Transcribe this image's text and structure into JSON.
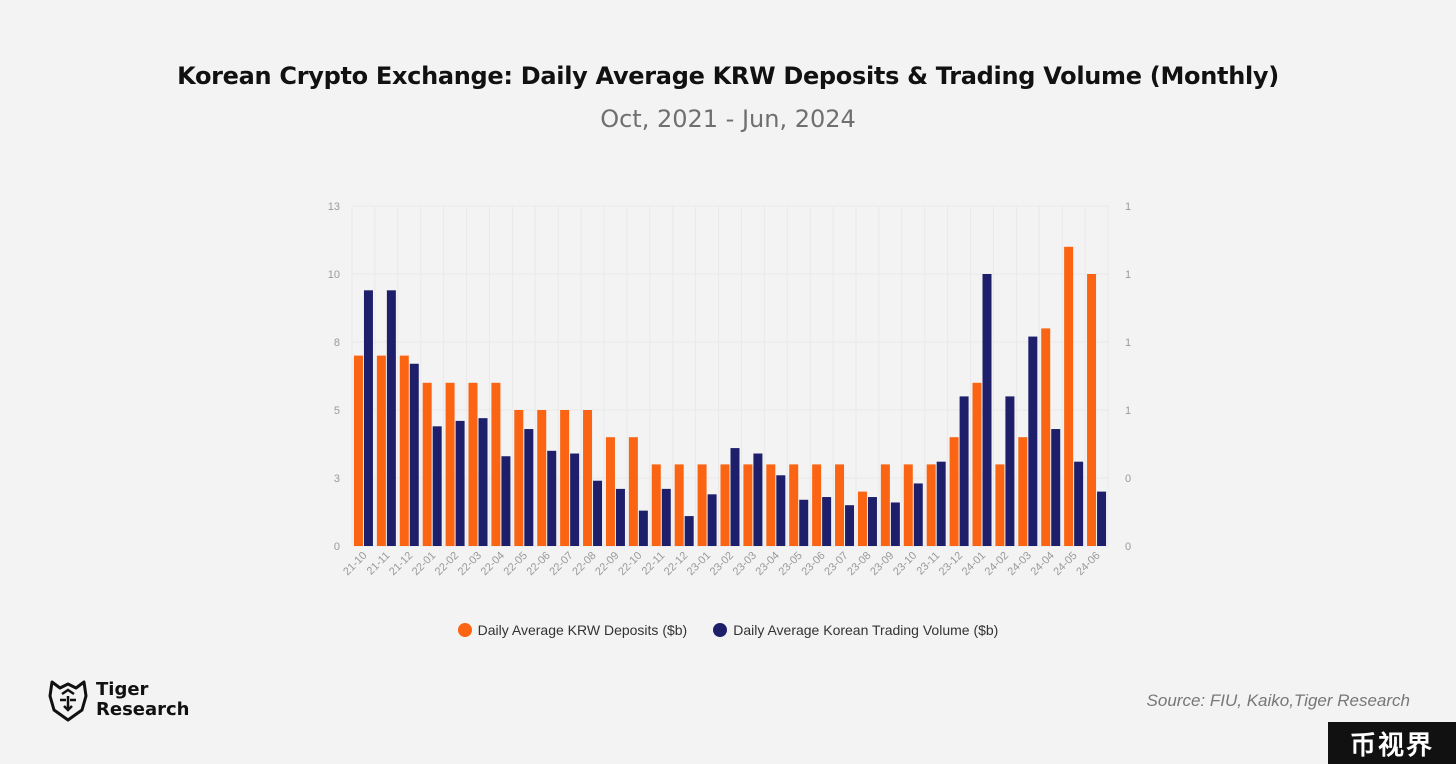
{
  "chart_data": {
    "type": "bar",
    "title": "Korean Crypto Exchange: Daily Average KRW Deposits & Trading Volume (Monthly)",
    "subtitle": "Oct, 2021 - Jun, 2024",
    "categories": [
      "21-10",
      "21-11",
      "21-12",
      "22-01",
      "22-02",
      "22-03",
      "22-04",
      "22-05",
      "22-06",
      "22-07",
      "22-08",
      "22-09",
      "22-10",
      "22-11",
      "22-12",
      "23-01",
      "23-02",
      "23-03",
      "23-04",
      "23-05",
      "23-06",
      "23-07",
      "23-08",
      "23-09",
      "23-10",
      "23-11",
      "23-12",
      "24-01",
      "24-02",
      "24-03",
      "24-04",
      "24-05",
      "24-06"
    ],
    "series": [
      {
        "name": "Daily Average KRW Deposits ($b)",
        "color": "#fa6412",
        "axis": "left",
        "values": [
          7.0,
          7.0,
          7.0,
          6.0,
          6.0,
          6.0,
          6.0,
          5.0,
          5.0,
          5.0,
          5.0,
          4.0,
          4.0,
          3.0,
          3.0,
          3.0,
          3.0,
          3.0,
          3.0,
          3.0,
          3.0,
          3.0,
          2.0,
          3.0,
          3.0,
          3.0,
          4.0,
          6.0,
          3.0,
          4.0,
          8.0,
          11.0,
          10.0
        ]
      },
      {
        "name": "Daily Average Korean Trading Volume ($b)",
        "color": "#1d1f6b",
        "axis": "right",
        "values": [
          9.4,
          9.4,
          6.7,
          4.4,
          4.6,
          4.7,
          3.3,
          4.3,
          3.5,
          3.4,
          2.4,
          2.1,
          1.3,
          2.1,
          1.1,
          1.9,
          3.6,
          3.4,
          2.6,
          1.7,
          1.8,
          1.5,
          1.8,
          1.6,
          2.3,
          3.1,
          5.5,
          10.0,
          5.5,
          7.7,
          4.3,
          3.1,
          2.0
        ]
      }
    ],
    "y_left": {
      "ticks": [
        "0",
        "3",
        "5",
        "8",
        "10",
        "13"
      ],
      "range": [
        0,
        12.5
      ]
    },
    "y_right": {
      "ticks": [
        "0",
        "0",
        "1",
        "1",
        "1",
        "1"
      ]
    },
    "legend_position": "bottom",
    "grid": true
  },
  "source": "Source: FIU, Kaiko,Tiger Research",
  "logo": {
    "line1": "Tiger",
    "line2": "Research"
  },
  "watermark": "币视界"
}
